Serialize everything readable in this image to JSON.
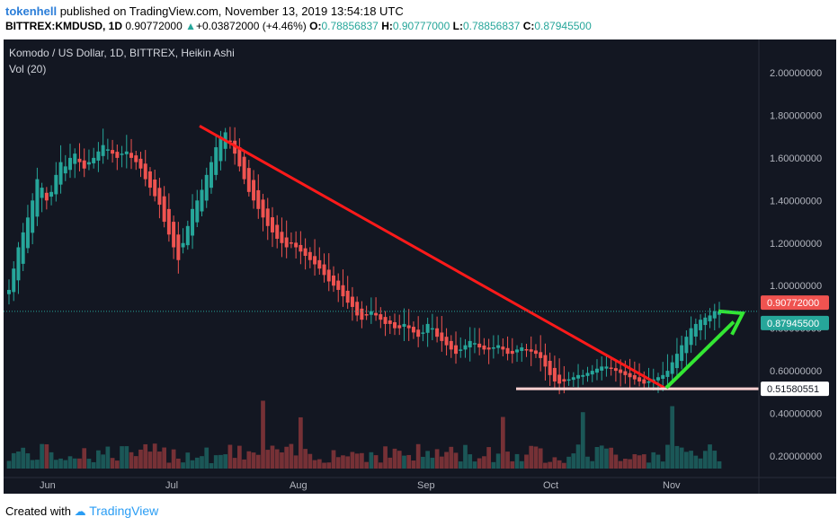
{
  "header": {
    "user": "tokenhell",
    "published_text": "published on TradingView.com, November 13, 2019 13:54:18 UTC",
    "symbol": "BITTREX:KMDUSD, 1D",
    "last": "0.90772000",
    "change_arrow": "▲",
    "change": "+0.03872000 (+4.46%)",
    "o_label": "O:",
    "o": "0.78856837",
    "h_label": "H:",
    "h": "0.90777000",
    "l_label": "L:",
    "l": "0.78856837",
    "c_label": "C:",
    "c": "0.87945500"
  },
  "legend": {
    "title": "Komodo / US Dollar, 1D, BITTREX, Heikin Ashi",
    "volume": "Vol (20)"
  },
  "footer": {
    "created_with": "Created with",
    "brand": "TradingView"
  },
  "colors": {
    "background": "#131722",
    "bull": "#26a69a",
    "bear": "#ef5350",
    "trendline": "#ff1a1a",
    "arrow": "#33e633",
    "support": "#ffd1d1"
  },
  "price_tags": {
    "last": "0.90772000",
    "close": "0.87945500",
    "support": "0.51580551"
  },
  "chart_data": {
    "type": "candlestick",
    "title": "Komodo / US Dollar, 1D, BITTREX, Heikin Ashi",
    "y_ticks": [
      "2.00000000",
      "1.80000000",
      "1.60000000",
      "1.40000000",
      "1.20000000",
      "1.00000000",
      "0.80000000",
      "0.60000000",
      "0.40000000",
      "0.20000000"
    ],
    "x_ticks": [
      "Jun",
      "Jul",
      "Aug",
      "Sep",
      "Oct",
      "Nov"
    ],
    "ylim": [
      0.1,
      2.1
    ],
    "grid": false,
    "closes": [
      0.98,
      1.08,
      1.18,
      1.25,
      1.32,
      1.4,
      1.5,
      1.46,
      1.4,
      1.44,
      1.52,
      1.58,
      1.56,
      1.6,
      1.62,
      1.58,
      1.55,
      1.58,
      1.6,
      1.63,
      1.66,
      1.64,
      1.62,
      1.6,
      1.62,
      1.63,
      1.6,
      1.58,
      1.55,
      1.5,
      1.46,
      1.42,
      1.38,
      1.3,
      1.24,
      1.18,
      1.12,
      1.2,
      1.28,
      1.36,
      1.4,
      1.45,
      1.52,
      1.58,
      1.65,
      1.7,
      1.72,
      1.68,
      1.62,
      1.56,
      1.5,
      1.44,
      1.4,
      1.36,
      1.32,
      1.28,
      1.25,
      1.22,
      1.2,
      1.18,
      1.2,
      1.18,
      1.16,
      1.14,
      1.12,
      1.1,
      1.08,
      1.05,
      1.02,
      1.0,
      0.98,
      0.95,
      0.92,
      0.9,
      0.86,
      0.84,
      0.86,
      0.88,
      0.86,
      0.84,
      0.82,
      0.82,
      0.8,
      0.8,
      0.82,
      0.8,
      0.78,
      0.76,
      0.78,
      0.82,
      0.8,
      0.76,
      0.74,
      0.72,
      0.7,
      0.68,
      0.7,
      0.72,
      0.74,
      0.73,
      0.71,
      0.7,
      0.7,
      0.71,
      0.72,
      0.7,
      0.68,
      0.68,
      0.7,
      0.71,
      0.7,
      0.69,
      0.68,
      0.66,
      0.62,
      0.58,
      0.55,
      0.54,
      0.55,
      0.56,
      0.57,
      0.58,
      0.58,
      0.59,
      0.6,
      0.61,
      0.62,
      0.62,
      0.61,
      0.6,
      0.59,
      0.58,
      0.57,
      0.56,
      0.55,
      0.54,
      0.55,
      0.56,
      0.57,
      0.58,
      0.6,
      0.64,
      0.68,
      0.72,
      0.76,
      0.8,
      0.82,
      0.84,
      0.85,
      0.86,
      0.88,
      0.88
    ],
    "support_level": 0.51580551,
    "last_price": 0.90772,
    "close_price": 0.879455
  }
}
